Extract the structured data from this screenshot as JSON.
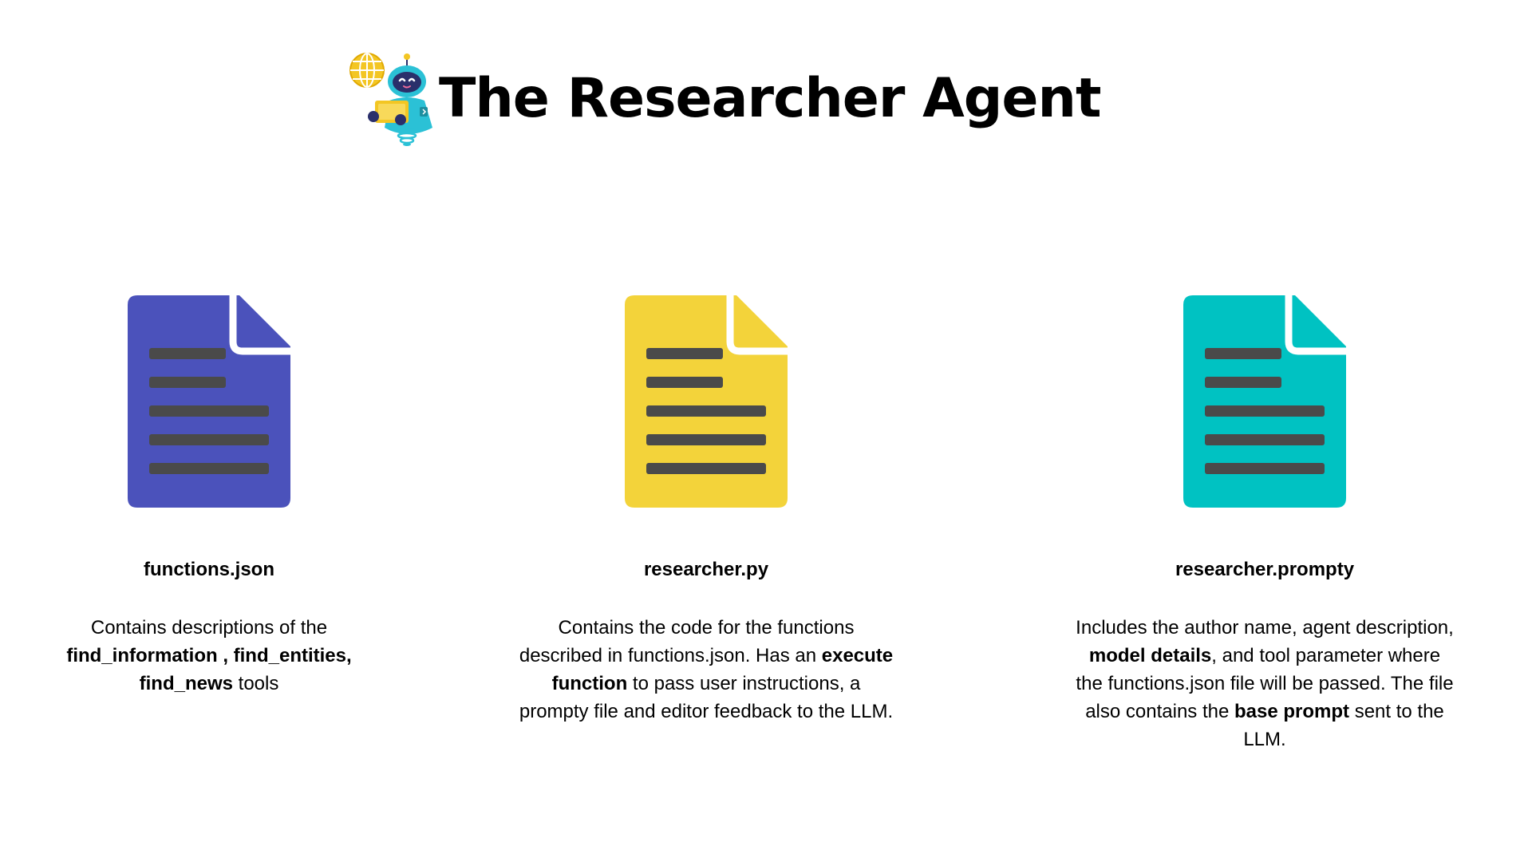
{
  "header": {
    "title": "The Researcher Agent",
    "logo_icon": "robot-with-globe-and-laptop-icon"
  },
  "colors": {
    "doc_blue": "#4B52BB",
    "doc_yellow": "#F3D33A",
    "doc_teal": "#00C2C2",
    "doc_lines": "#4A4A4A",
    "text": "#000000",
    "background": "#FFFFFF"
  },
  "cards": [
    {
      "icon": "document-icon",
      "color": "#4B52BB",
      "file_name": "functions.json",
      "desc": {
        "t1": "Contains descriptions of the ",
        "b1": "find_information , find_entities, find_news",
        "t2": " tools"
      }
    },
    {
      "icon": "document-icon",
      "color": "#F3D33A",
      "file_name": "researcher.py",
      "desc": {
        "t1": "Contains the code for the functions described in functions.json. Has an ",
        "b1": "execute function",
        "t2": " to pass user instructions, a prompty file and editor feedback to the LLM."
      }
    },
    {
      "icon": "document-icon",
      "color": "#00C2C2",
      "file_name": "researcher.prompty",
      "desc": {
        "t1": "Includes the author name, agent description, ",
        "b1": "model details",
        "t2": ", and tool parameter where the functions.json file will be passed. The file also contains the ",
        "b2": "base prompt",
        "t3": " sent to the LLM."
      }
    }
  ]
}
